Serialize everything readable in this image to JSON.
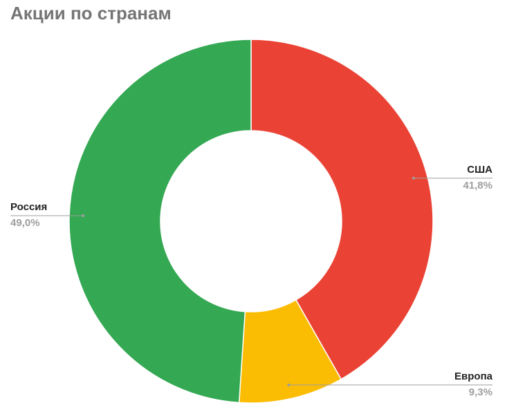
{
  "chart_data": {
    "type": "donut",
    "title": "Акции по странам",
    "categories": [
      "США",
      "Европа",
      "Россия"
    ],
    "values": [
      41.8,
      9.3,
      49.0
    ],
    "value_labels": [
      "41,8%",
      "9,3%",
      "49,0%"
    ],
    "colors": [
      "#ea4335",
      "#fbbc04",
      "#34a853"
    ]
  }
}
